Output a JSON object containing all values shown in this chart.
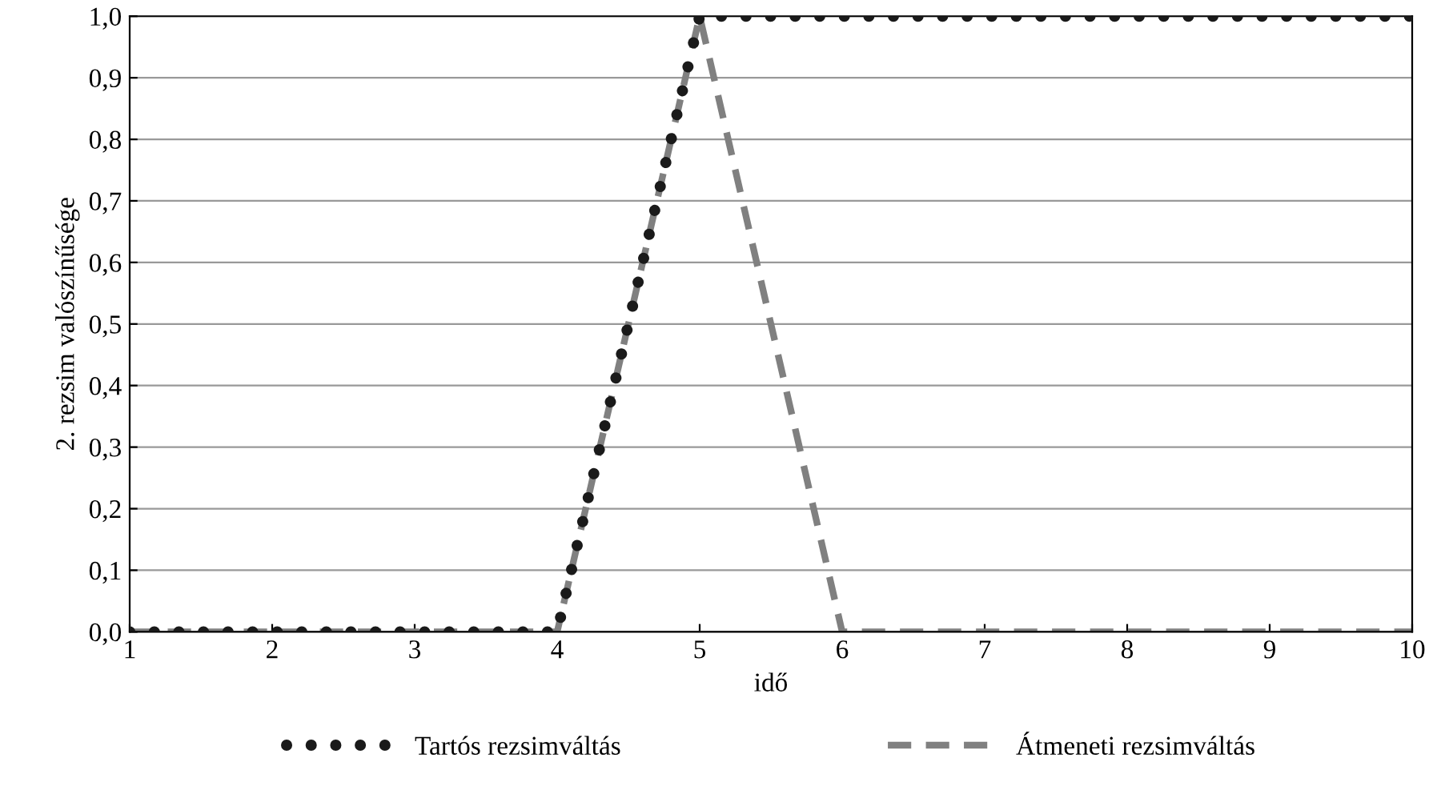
{
  "chart_data": {
    "type": "line",
    "xlabel": "idő",
    "ylabel": "2. rezsim valószínűsége",
    "xlim": [
      1,
      10
    ],
    "ylim": [
      0,
      1
    ],
    "xticks": [
      1,
      2,
      3,
      4,
      5,
      6,
      7,
      8,
      9,
      10
    ],
    "yticks": [
      {
        "value": 0,
        "label": "0,0"
      },
      {
        "value": 0.1,
        "label": "0,1"
      },
      {
        "value": 0.2,
        "label": "0,2"
      },
      {
        "value": 0.3,
        "label": "0,3"
      },
      {
        "value": 0.4,
        "label": "0,4"
      },
      {
        "value": 0.5,
        "label": "0,5"
      },
      {
        "value": 0.6,
        "label": "0,6"
      },
      {
        "value": 0.7,
        "label": "0,7"
      },
      {
        "value": 0.8,
        "label": "0,8"
      },
      {
        "value": 0.9,
        "label": "0,9"
      },
      {
        "value": 1,
        "label": "1,0"
      }
    ],
    "grid": "y",
    "legend": "bottom",
    "series": [
      {
        "name": "Tartós rezsimváltás",
        "color": "#1a1a1a",
        "line_style": "dotted",
        "x": [
          1,
          4,
          5,
          10
        ],
        "values": [
          0,
          0,
          1,
          1
        ]
      },
      {
        "name": "Átmeneti rezsimváltás",
        "color": "#808080",
        "line_style": "dashed",
        "x": [
          1,
          4,
          5,
          6,
          10
        ],
        "values": [
          0,
          0,
          1,
          0,
          0
        ]
      }
    ]
  }
}
